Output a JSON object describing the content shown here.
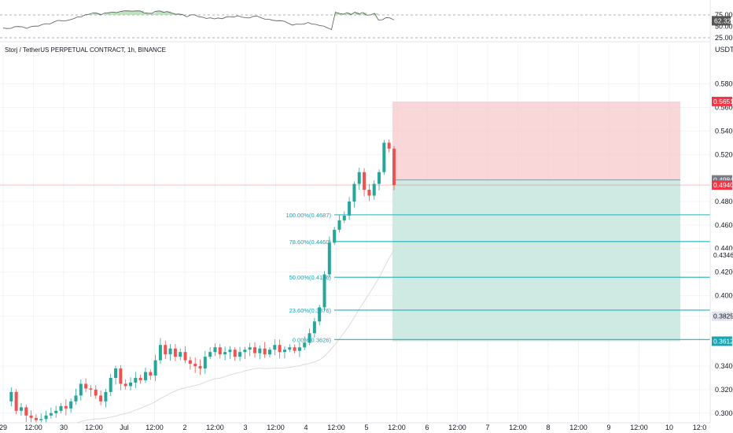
{
  "title": "Storj / TetherUS PERPETUAL CONTRACT, 1h, BINANCE",
  "currency": "USDT",
  "colors": {
    "up": "#26a69a",
    "down": "#ef5350",
    "fib": "#1eb3bc",
    "stop_zone": "#f7c8cb",
    "target_zone": "#cfe9e3",
    "ma": "#d7d7d7",
    "rsi_line": "#555555",
    "rsi_fill": "#a5d6a7",
    "grid": "#f2f3f5"
  },
  "rsi": {
    "levels": [
      "75.00",
      "50.00",
      "25.00"
    ],
    "current": "62.32",
    "level_values": [
      75,
      50,
      25
    ]
  },
  "price_axis": {
    "ticks": [
      "0.5800",
      "0.5600",
      "0.5400",
      "0.5200",
      "0.4800",
      "0.4600",
      "0.4400",
      "0.4200",
      "0.4000",
      "0.3825",
      "0.3400",
      "0.3200",
      "0.3000"
    ],
    "tick_values": [
      0.58,
      0.56,
      0.54,
      0.52,
      0.48,
      0.46,
      0.44,
      0.42,
      0.4,
      0.3825,
      0.34,
      0.32,
      0.3
    ],
    "min": 0.2925,
    "max": 0.5925
  },
  "price_tags": [
    {
      "label": "0.5651",
      "value": 0.5651,
      "style": "red"
    },
    {
      "label": "0.4984",
      "value": 0.4984,
      "style": "grey"
    },
    {
      "label": "0.4940",
      "value": 0.494,
      "style": "red"
    },
    {
      "label": "0.4346",
      "value": 0.4346,
      "style": "plain"
    },
    {
      "label": "0.3825",
      "value": 0.3825,
      "style": "light"
    },
    {
      "label": "0.3612",
      "value": 0.3612,
      "style": "teal"
    }
  ],
  "fib_levels": [
    {
      "label": "100.00%(0.4687)",
      "value": 0.4687
    },
    {
      "label": "78.60%(0.4460)",
      "value": 0.446
    },
    {
      "label": "50.00%(0.4156)",
      "value": 0.4156
    },
    {
      "label": "23.60%(0.3876)",
      "value": 0.3876
    },
    {
      "label": "0.00%(0.3626)",
      "value": 0.3626
    }
  ],
  "position": {
    "entry": 0.4984,
    "stop": 0.5651,
    "target": 0.3612,
    "current": 0.494
  },
  "time_axis": {
    "labels": [
      "29",
      "12:00",
      "30",
      "12:00",
      "Jul",
      "12:00",
      "2",
      "12:00",
      "3",
      "12:00",
      "4",
      "12:00",
      "5",
      "12:00",
      "6",
      "12:00",
      "7",
      "12:00",
      "8",
      "12:00",
      "9",
      "12:00",
      "10",
      "12:0"
    ]
  },
  "chart_data": {
    "type": "candlestick",
    "symbol": "Storj / TetherUS PERPETUAL CONTRACT",
    "interval": "1h",
    "exchange": "BINANCE",
    "ohlc_path": [
      0.31,
      0.318,
      0.302,
      0.305,
      0.298,
      0.296,
      0.294,
      0.295,
      0.298,
      0.3,
      0.302,
      0.306,
      0.304,
      0.31,
      0.315,
      0.325,
      0.321,
      0.32,
      0.315,
      0.31,
      0.318,
      0.33,
      0.338,
      0.325,
      0.323,
      0.326,
      0.33,
      0.328,
      0.335,
      0.332,
      0.345,
      0.358,
      0.35,
      0.355,
      0.348,
      0.352,
      0.345,
      0.342,
      0.34,
      0.338,
      0.348,
      0.352,
      0.356,
      0.35,
      0.352,
      0.354,
      0.348,
      0.352,
      0.354,
      0.356,
      0.351,
      0.355,
      0.35,
      0.354,
      0.358,
      0.352,
      0.354,
      0.356,
      0.353,
      0.356,
      0.36,
      0.368,
      0.378,
      0.39,
      0.418,
      0.445,
      0.456,
      0.464,
      0.468,
      0.48,
      0.495,
      0.505,
      0.49,
      0.485,
      0.495,
      0.505,
      0.53,
      0.525,
      0.494
    ]
  }
}
